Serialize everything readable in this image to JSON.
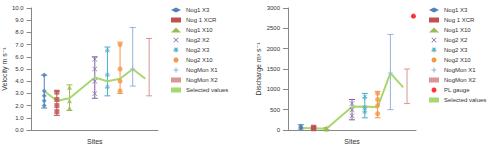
{
  "chart_data": [
    {
      "type": "scatter",
      "y_label": "Velocity m s⁻¹",
      "x_label": "Sites",
      "xlim": [
        0,
        10
      ],
      "ylim": [
        0,
        10
      ],
      "yticks": [
        {
          "value": 0,
          "label": "0.0"
        },
        {
          "value": 1,
          "label": "1.0"
        },
        {
          "value": 2,
          "label": "2.0"
        },
        {
          "value": 3,
          "label": "3.0"
        },
        {
          "value": 4,
          "label": "4.0"
        },
        {
          "value": 5,
          "label": "5.0"
        },
        {
          "value": 6,
          "label": "6.0"
        },
        {
          "value": 7,
          "label": "7.0"
        },
        {
          "value": 8,
          "label": "8.0"
        },
        {
          "value": 9,
          "label": "9.0"
        },
        {
          "value": 10,
          "label": "10.0"
        }
      ],
      "tick_labels": "y",
      "grid": false,
      "legend": "right",
      "series": [
        {
          "name": "Nog1 X3",
          "color": "#4f81bd",
          "marker": "diamond",
          "x": 1,
          "values": [
            2.0,
            2.4,
            2.8,
            3.2,
            4.5
          ],
          "error": [
            1.8,
            4.5
          ]
        },
        {
          "name": "Nog 1 XCR",
          "color": "#c0504d",
          "marker": "square",
          "x": 2,
          "values": [
            1.5,
            2.0,
            2.5,
            3.1
          ],
          "error": [
            1.2,
            3.2
          ]
        },
        {
          "name": "Nog1 X10",
          "color": "#9bbb59",
          "marker": "triangle",
          "x": 3,
          "values": [
            1.8,
            2.4,
            3.5
          ],
          "error": [
            1.6,
            3.7
          ]
        },
        {
          "name": "Nog2 X2",
          "color": "#8064a2",
          "marker": "x",
          "x": 5,
          "values": [
            3.0,
            4.0,
            5.0,
            5.8
          ],
          "error": [
            2.6,
            6.0
          ]
        },
        {
          "name": "Nog2 X3",
          "color": "#4bacc6",
          "marker": "star",
          "x": 6,
          "values": [
            3.5,
            4.5,
            6.5
          ],
          "error": [
            2.8,
            6.8
          ]
        },
        {
          "name": "Nog2 X10",
          "color": "#f79646",
          "marker": "circle",
          "x": 7,
          "values": [
            3.2,
            4.0,
            5.0,
            7.0
          ],
          "error": [
            3.0,
            7.2
          ]
        },
        {
          "name": "NogMon X1",
          "color": "#95b3d7",
          "marker": "plus",
          "x": 8,
          "values": [
            5.0
          ],
          "error": [
            3.6,
            8.4
          ]
        },
        {
          "name": "NogMon X2",
          "color": "#d99694",
          "marker": "none",
          "x": 9.3,
          "values": [],
          "error": [
            2.8,
            7.5
          ]
        },
        {
          "name": "Selected values",
          "color": "#a6d86e",
          "type": "line",
          "line_style": "solid",
          "x": [
            1,
            2,
            3,
            5,
            6,
            7,
            8,
            9
          ],
          "values": [
            3.2,
            2.4,
            2.6,
            4.3,
            4.0,
            4.2,
            5.0,
            4.2
          ]
        }
      ]
    },
    {
      "type": "scatter",
      "y_label": "Discharge m³ s⁻¹",
      "x_label": "Sites",
      "xlim": [
        0,
        10
      ],
      "ylim": [
        0,
        3000
      ],
      "yticks": [
        0,
        500,
        1000,
        1500,
        2000,
        2500,
        3000
      ],
      "tick_labels": "y",
      "grid": false,
      "legend": "right",
      "series": [
        {
          "name": "Nog1 X3",
          "color": "#4f81bd",
          "marker": "diamond",
          "x": 1,
          "values": [
            40,
            60,
            90
          ],
          "error": [
            0,
            130
          ]
        },
        {
          "name": "Nog 1 XCR",
          "color": "#c0504d",
          "marker": "square",
          "x": 2,
          "values": [
            30,
            50,
            70
          ],
          "error": [
            20,
            80
          ]
        },
        {
          "name": "Nog1 X10",
          "color": "#9bbb59",
          "marker": "triangle",
          "x": 3,
          "values": [
            20,
            35,
            50
          ],
          "error": [
            10,
            60
          ]
        },
        {
          "name": "Nog2 X2",
          "color": "#8064a2",
          "marker": "x",
          "x": 5,
          "values": [
            350,
            500,
            650
          ],
          "error": [
            250,
            750
          ]
        },
        {
          "name": "Nog2 X3",
          "color": "#4bacc6",
          "marker": "star",
          "x": 6,
          "values": [
            450,
            550,
            800
          ],
          "error": [
            300,
            900
          ]
        },
        {
          "name": "Nog2 X10",
          "color": "#f79646",
          "marker": "circle",
          "x": 7,
          "values": [
            400,
            600,
            750,
            900
          ],
          "error": [
            300,
            950
          ]
        },
        {
          "name": "NogMon X1",
          "color": "#95b3d7",
          "marker": "plus",
          "x": 8,
          "values": [
            1400
          ],
          "error": [
            500,
            2350
          ]
        },
        {
          "name": "NogMon X2",
          "color": "#d99694",
          "marker": "none",
          "x": 9.3,
          "values": [],
          "error": [
            650,
            1500
          ]
        },
        {
          "name": "PL gauge",
          "color": "#ff0000",
          "marker": "circle",
          "x": 9.8,
          "values": [
            2800
          ]
        },
        {
          "name": "Selected values",
          "color": "#a6d86e",
          "type": "line",
          "line_style": "solid",
          "x": [
            1,
            2,
            3,
            5,
            6,
            7,
            8,
            9
          ],
          "values": [
            50,
            40,
            30,
            570,
            580,
            560,
            1400,
            1050
          ]
        }
      ]
    }
  ]
}
